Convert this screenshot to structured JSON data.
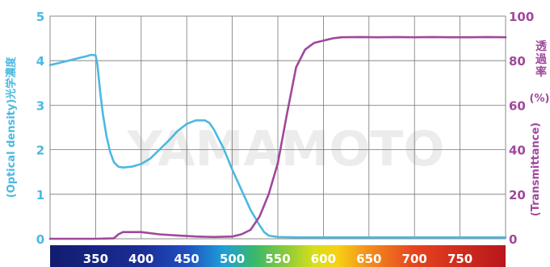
{
  "chart_data": {
    "type": "line",
    "x_range": [
      300,
      800
    ],
    "x_ticks": [
      350,
      400,
      450,
      500,
      550,
      600,
      650,
      700,
      750
    ],
    "left_axis": {
      "label_cjk": "光学濃度",
      "label_en": "(Optical density)",
      "range": [
        0,
        5
      ],
      "ticks": [
        0,
        1,
        2,
        3,
        4,
        5
      ]
    },
    "right_axis": {
      "label_cjk": "透過率",
      "label_unit": "(%)",
      "label_en": "(Transmittance)",
      "range": [
        0,
        100
      ],
      "ticks": [
        0,
        20,
        40,
        60,
        80,
        100
      ]
    },
    "watermark": "YAMAMOTO",
    "grid": true,
    "series": [
      {
        "axis": "left",
        "color": "#4bb9e0",
        "points": [
          [
            300,
            3.9
          ],
          [
            310,
            3.95
          ],
          [
            320,
            4.0
          ],
          [
            330,
            4.05
          ],
          [
            340,
            4.1
          ],
          [
            345,
            4.13
          ],
          [
            350,
            4.12
          ],
          [
            352,
            3.9
          ],
          [
            355,
            3.3
          ],
          [
            358,
            2.8
          ],
          [
            362,
            2.3
          ],
          [
            366,
            1.95
          ],
          [
            370,
            1.72
          ],
          [
            375,
            1.62
          ],
          [
            380,
            1.6
          ],
          [
            390,
            1.62
          ],
          [
            400,
            1.68
          ],
          [
            410,
            1.8
          ],
          [
            420,
            2.0
          ],
          [
            430,
            2.2
          ],
          [
            440,
            2.42
          ],
          [
            450,
            2.58
          ],
          [
            460,
            2.66
          ],
          [
            470,
            2.66
          ],
          [
            475,
            2.6
          ],
          [
            480,
            2.45
          ],
          [
            490,
            2.05
          ],
          [
            500,
            1.55
          ],
          [
            510,
            1.1
          ],
          [
            520,
            0.65
          ],
          [
            530,
            0.3
          ],
          [
            535,
            0.15
          ],
          [
            540,
            0.07
          ],
          [
            550,
            0.04
          ],
          [
            575,
            0.03
          ],
          [
            600,
            0.03
          ],
          [
            650,
            0.03
          ],
          [
            700,
            0.03
          ],
          [
            750,
            0.03
          ],
          [
            800,
            0.03
          ]
        ]
      },
      {
        "axis": "right",
        "color": "#a0489c",
        "points": [
          [
            300,
            0
          ],
          [
            350,
            0
          ],
          [
            370,
            0.2
          ],
          [
            375,
            2
          ],
          [
            380,
            3
          ],
          [
            400,
            3
          ],
          [
            420,
            2
          ],
          [
            440,
            1.5
          ],
          [
            460,
            1
          ],
          [
            480,
            0.8
          ],
          [
            500,
            1
          ],
          [
            510,
            2
          ],
          [
            520,
            4
          ],
          [
            530,
            10
          ],
          [
            540,
            20
          ],
          [
            550,
            34
          ],
          [
            560,
            56
          ],
          [
            570,
            77
          ],
          [
            580,
            85
          ],
          [
            590,
            88
          ],
          [
            600,
            89
          ],
          [
            610,
            90
          ],
          [
            620,
            90.5
          ],
          [
            640,
            90.6
          ],
          [
            660,
            90.5
          ],
          [
            680,
            90.6
          ],
          [
            700,
            90.5
          ],
          [
            720,
            90.6
          ],
          [
            740,
            90.5
          ],
          [
            760,
            90.5
          ],
          [
            780,
            90.6
          ],
          [
            800,
            90.5
          ]
        ]
      }
    ]
  }
}
